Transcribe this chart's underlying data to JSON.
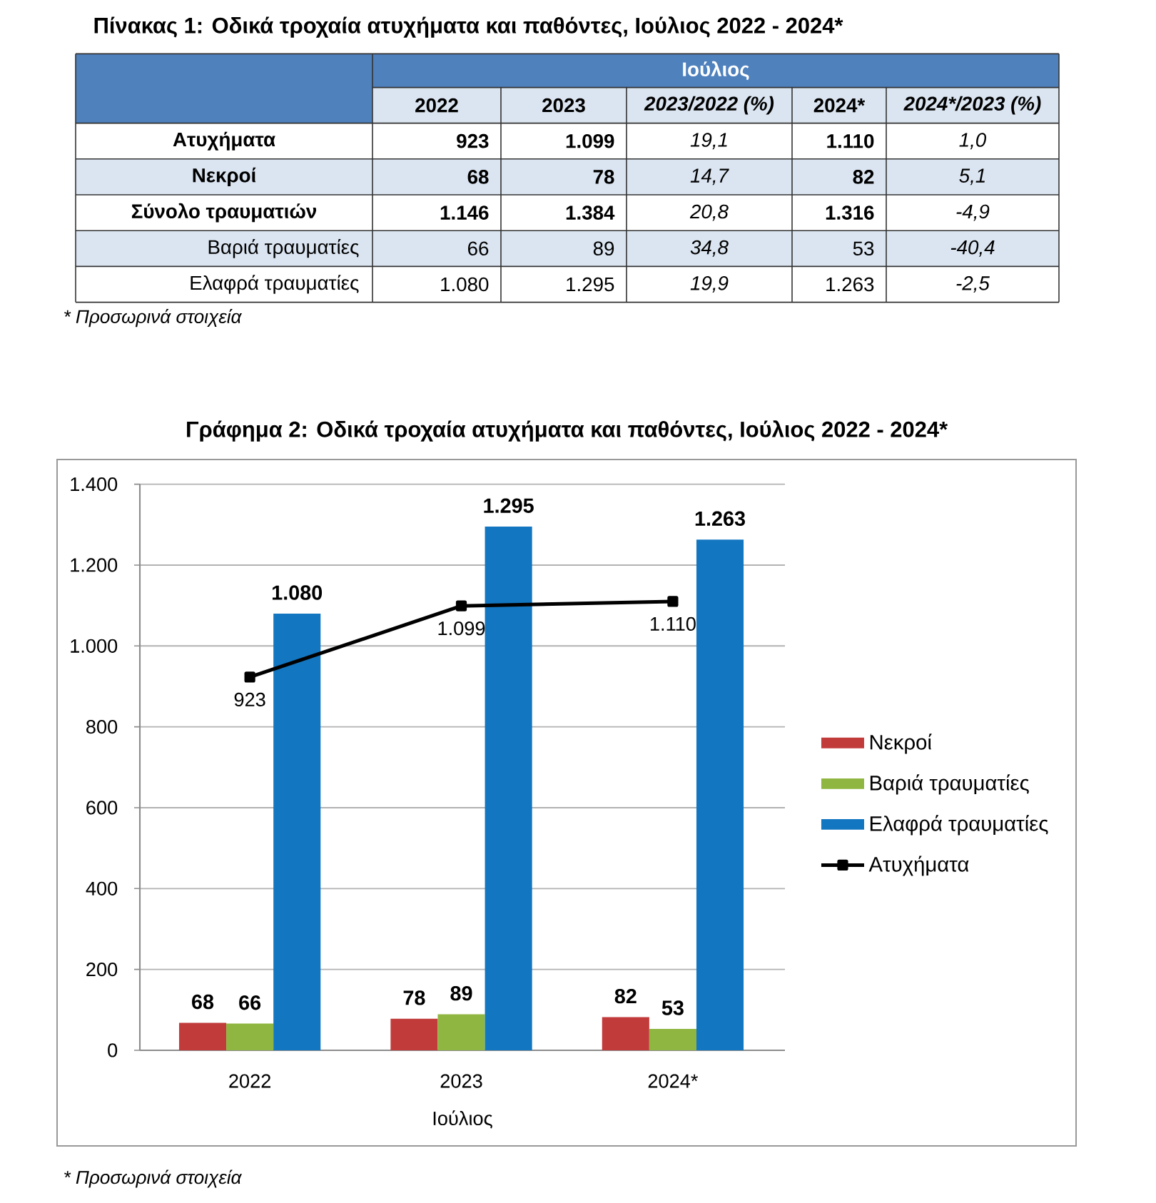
{
  "chart_data": [
    {
      "type": "other",
      "title": "Πίνακας 1: Οδικά τροχαία ατυχήματα και παθόντες, Ιούλιος 2022 - 2024*",
      "xlabel": "Ιούλιος",
      "categories": [
        "2022",
        "2023",
        "2023/2022 (%)",
        "2024*",
        "2024*/2023 (%)"
      ],
      "y_categories": [
        "Ατυχήματα",
        "Νεκροί",
        "Σύνολο τραυματιών",
        "Βαριά τραυματίες",
        "Ελαφρά τραυματίες"
      ],
      "cell_labels": [
        [
          "923",
          "1.099",
          "19,1",
          "1.110",
          "1,0"
        ],
        [
          "68",
          "78",
          "14,7",
          "82",
          "5,1"
        ],
        [
          "1.146",
          "1.384",
          "20,8",
          "1.316",
          "-4,9"
        ],
        [
          "66",
          "89",
          "34,8",
          "53",
          "-40,4"
        ],
        [
          "1.080",
          "1.295",
          "19,9",
          "1.263",
          "-2,5"
        ]
      ],
      "annotations": [
        "* Προσωρινά στοιχεία"
      ]
    },
    {
      "type": "bar",
      "title": "Γράφημα 2: Οδικά τροχαία ατυχήματα και παθόντες, Ιούλιος 2022 - 2024*",
      "categories": [
        "2022",
        "2023",
        "2024*"
      ],
      "xlabel": "Ιούλιος",
      "ylim": [
        0,
        1400
      ],
      "yticks": [
        0,
        200,
        400,
        600,
        800,
        {
          "value": 1000,
          "label": "1.000"
        },
        {
          "value": 1200,
          "label": "1.200"
        },
        {
          "value": 1400,
          "label": "1.400"
        }
      ],
      "grid": "y",
      "legend": "right",
      "series": [
        {
          "name": "Νεκροί",
          "color": "#c23b3b",
          "values": [
            68,
            78,
            82
          ],
          "value_labels": [
            "68",
            "78",
            "82"
          ]
        },
        {
          "name": "Βαριά τραυματίες",
          "color": "#8fb640",
          "values": [
            66,
            89,
            53
          ],
          "value_labels": [
            "66",
            "89",
            "53"
          ]
        },
        {
          "name": "Ελαφρά τραυματίες",
          "color": "#1276c0",
          "values": [
            1080,
            1295,
            1263
          ],
          "value_labels": [
            "1.080",
            "1.295",
            "1.263"
          ]
        },
        {
          "name": "Ατυχήματα",
          "type": "line",
          "color": "#000000",
          "marker": "square",
          "values": [
            923,
            1099,
            1110
          ],
          "value_labels": [
            "923",
            "1.099",
            "1.110"
          ]
        }
      ],
      "annotations": [
        "* Προσωρινά στοιχεία"
      ]
    }
  ]
}
